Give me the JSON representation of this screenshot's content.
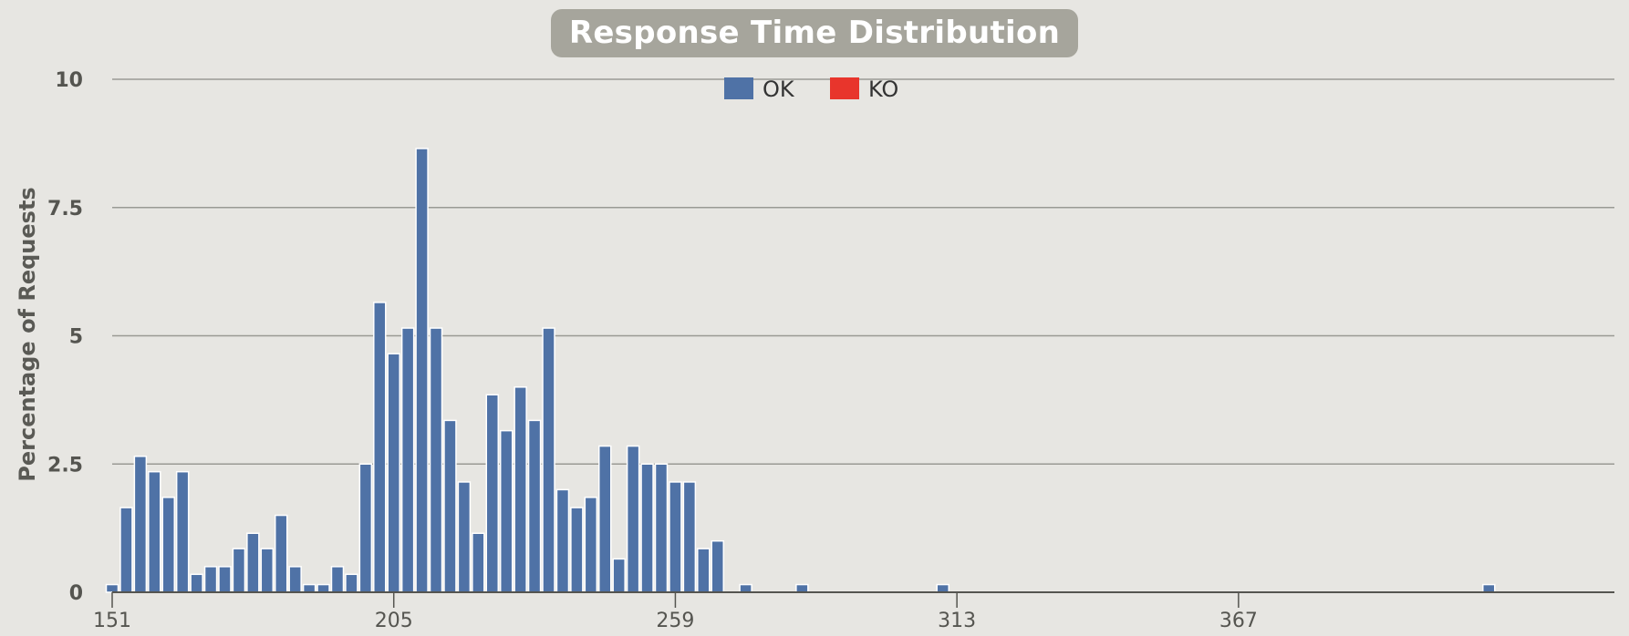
{
  "chart_data": {
    "type": "bar",
    "title": "Response Time Distribution",
    "ylabel": "Percentage of Requests",
    "xlabel": "",
    "ylim": [
      0,
      10
    ],
    "y_ticks": [
      "0",
      "2.5",
      "5",
      "7.5",
      "10"
    ],
    "x_min": 151,
    "x_max": 416,
    "x_ticks": [
      "151",
      "205",
      "259",
      "313",
      "367"
    ],
    "legend": {
      "placement": "top-center"
    },
    "series": [
      {
        "name": "OK",
        "color": "#4f72a6",
        "points": [
          [
            151,
            0.15
          ],
          [
            153.7,
            1.65
          ],
          [
            156.4,
            2.65
          ],
          [
            159.1,
            2.35
          ],
          [
            161.8,
            1.85
          ],
          [
            164.5,
            2.35
          ],
          [
            167.2,
            0.35
          ],
          [
            169.9,
            0.5
          ],
          [
            172.6,
            0.5
          ],
          [
            175.3,
            0.85
          ],
          [
            178,
            1.15
          ],
          [
            180.7,
            0.85
          ],
          [
            183.4,
            1.5
          ],
          [
            186.1,
            0.5
          ],
          [
            188.8,
            0.15
          ],
          [
            191.5,
            0.15
          ],
          [
            194.2,
            0.5
          ],
          [
            196.9,
            0.35
          ],
          [
            199.6,
            2.5
          ],
          [
            202.3,
            5.65
          ],
          [
            205,
            4.65
          ],
          [
            207.7,
            5.15
          ],
          [
            210.4,
            8.65
          ],
          [
            213.1,
            5.15
          ],
          [
            215.8,
            3.35
          ],
          [
            218.5,
            2.15
          ],
          [
            221.2,
            1.15
          ],
          [
            223.9,
            3.85
          ],
          [
            226.6,
            3.15
          ],
          [
            229.3,
            4.0
          ],
          [
            232,
            3.35
          ],
          [
            234.7,
            5.15
          ],
          [
            237.4,
            2.0
          ],
          [
            240.1,
            1.65
          ],
          [
            242.8,
            1.85
          ],
          [
            245.5,
            2.85
          ],
          [
            248.2,
            0.65
          ],
          [
            250.9,
            2.85
          ],
          [
            253.6,
            2.5
          ],
          [
            256.3,
            2.5
          ],
          [
            259,
            2.15
          ],
          [
            261.7,
            2.15
          ],
          [
            264.4,
            0.85
          ],
          [
            267.1,
            1.0
          ],
          [
            272.5,
            0.15
          ],
          [
            283.3,
            0.15
          ],
          [
            310.3,
            0.15
          ],
          [
            415,
            0.15
          ]
        ]
      },
      {
        "name": "KO",
        "color": "#e8352c",
        "points": []
      }
    ]
  }
}
